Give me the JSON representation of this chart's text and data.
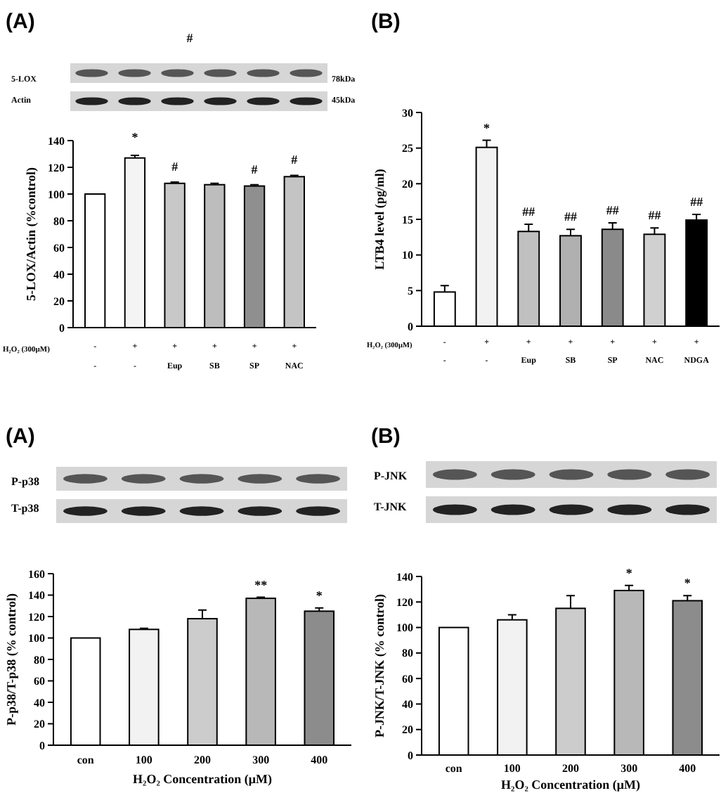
{
  "chart_data": [
    {
      "type": "bar",
      "title": "(A)",
      "ylabel": "5-LOX/Actin (%control)",
      "categories": [
        "-",
        "-",
        "Eup",
        "SB",
        "SP",
        "NAC"
      ],
      "values": [
        100,
        127,
        108,
        107,
        106,
        113
      ],
      "errors": [
        null,
        2,
        1,
        1,
        1,
        1
      ],
      "colors": [
        "#ffffff",
        "#f4f4f4",
        "#c8c8c8",
        "#bdbdbd",
        "#8f8f8f",
        "#c4c4c4"
      ],
      "ylim": [
        0,
        140
      ],
      "yticks": [
        0,
        20,
        40,
        60,
        80,
        100,
        120,
        140
      ],
      "annotations": [
        "#",
        "5-LOX",
        "Actin",
        "78kDa",
        "45kDa",
        "*",
        "#",
        "#",
        "#",
        "H₂O₂ (300μM)",
        "-",
        "+",
        "+",
        "+",
        "+",
        "+"
      ]
    },
    {
      "type": "bar",
      "title": "(B)",
      "ylabel": "LTB4 level (pg/ml)",
      "categories": [
        "-",
        "-",
        "Eup",
        "SB",
        "SP",
        "NAC",
        "NDGA"
      ],
      "values": [
        4.8,
        25.1,
        13.3,
        12.7,
        13.6,
        12.9,
        14.9
      ],
      "errors": [
        0.9,
        1,
        1,
        0.9,
        0.9,
        0.9,
        0.8
      ],
      "colors": [
        "#ffffff",
        "#f2f2f2",
        "#c0c0c0",
        "#b0b0b0",
        "#8a8a8a",
        "#d0d0d0",
        "#000000"
      ],
      "ylim": [
        0,
        30
      ],
      "yticks": [
        0,
        5,
        10,
        15,
        20,
        25,
        30
      ],
      "annotations": [
        "*",
        "##",
        "##",
        "##",
        "##",
        "##",
        "H₂O₂ (300μM)",
        "-",
        "+",
        "+",
        "+",
        "+",
        "+",
        "+"
      ]
    },
    {
      "type": "bar",
      "title": "(A)",
      "xlabel": "H₂O₂ Concentration (μM)",
      "ylabel": "P-p38/T-p38 (% control)",
      "categories": [
        "con",
        "100",
        "200",
        "300",
        "400"
      ],
      "values": [
        100,
        108,
        118,
        137,
        125
      ],
      "errors": [
        null,
        1,
        8,
        1,
        3
      ],
      "colors": [
        "#ffffff",
        "#f2f2f2",
        "#cccccc",
        "#b8b8b8",
        "#8c8c8c"
      ],
      "ylim": [
        0,
        160
      ],
      "yticks": [
        0,
        20,
        40,
        60,
        80,
        100,
        120,
        140,
        160
      ],
      "annotations": [
        "P-p38",
        "T-p38",
        "**",
        "*"
      ]
    },
    {
      "type": "bar",
      "title": "(B)",
      "xlabel": "H₂O₂ Concentration (μM)",
      "ylabel": "P-JNK/T-JNK (% control)",
      "categories": [
        "con",
        "100",
        "200",
        "300",
        "400"
      ],
      "values": [
        100,
        106,
        115,
        129,
        121
      ],
      "errors": [
        null,
        4,
        10,
        4,
        4
      ],
      "colors": [
        "#ffffff",
        "#f2f2f2",
        "#cccccc",
        "#b8b8b8",
        "#8c8c8c"
      ],
      "ylim": [
        0,
        140
      ],
      "yticks": [
        0,
        20,
        40,
        60,
        80,
        100,
        120,
        140
      ],
      "annotations": [
        "P-JNK",
        "T-JNK",
        "*",
        "*"
      ]
    }
  ]
}
